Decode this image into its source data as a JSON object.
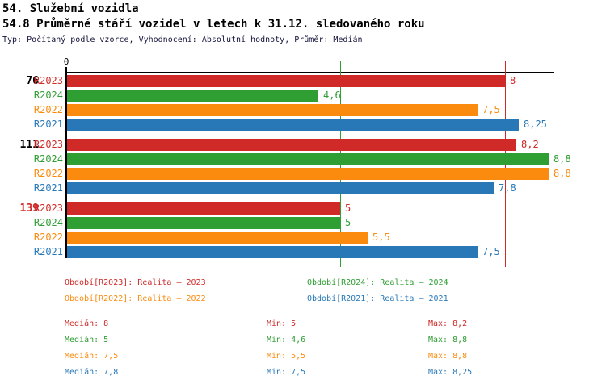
{
  "header": {
    "title": "54. Služební vozidla",
    "subtitle": "54.8 Průměrné stáří vozidel v letech k 31.12. sledovaného roku",
    "meta": "Typ: Počítaný podle vzorce, Vyhodnocení: Absolutní hodnoty, Průměr: Medián"
  },
  "palette": {
    "R2023": "#cf2a27",
    "R2024": "#2f9e33",
    "R2022": "#fb8b0e",
    "R2021": "#2878b8",
    "axis": "#000000",
    "group_label_default": "#000000",
    "group_label_highlight": "#cf2a27"
  },
  "chart_data": {
    "type": "bar",
    "orientation": "horizontal",
    "value_axis": {
      "origin_label": "0",
      "min": 0,
      "max": 8.88,
      "position": "top"
    },
    "series_order": [
      "R2023",
      "R2024",
      "R2022",
      "R2021"
    ],
    "groups": [
      {
        "label": "76",
        "highlight": false,
        "bars": [
          {
            "series": "R2023",
            "value": 8,
            "display": "8"
          },
          {
            "series": "R2024",
            "value": 4.6,
            "display": "4,6"
          },
          {
            "series": "R2022",
            "value": 7.5,
            "display": "7,5"
          },
          {
            "series": "R2021",
            "value": 8.25,
            "display": "8,25"
          }
        ]
      },
      {
        "label": "111",
        "highlight": false,
        "bars": [
          {
            "series": "R2023",
            "value": 8.2,
            "display": "8,2"
          },
          {
            "series": "R2024",
            "value": 8.8,
            "display": "8,8"
          },
          {
            "series": "R2022",
            "value": 8.8,
            "display": "8,8"
          },
          {
            "series": "R2021",
            "value": 7.8,
            "display": "7,8"
          }
        ]
      },
      {
        "label": "139",
        "highlight": true,
        "bars": [
          {
            "series": "R2023",
            "value": 5,
            "display": "5"
          },
          {
            "series": "R2024",
            "value": 5,
            "display": "5"
          },
          {
            "series": "R2022",
            "value": 5.5,
            "display": "5,5"
          },
          {
            "series": "R2021",
            "value": 7.5,
            "display": "7,5"
          }
        ]
      }
    ],
    "median_lines": [
      {
        "series": "R2023",
        "value": 8
      },
      {
        "series": "R2024",
        "value": 5
      },
      {
        "series": "R2022",
        "value": 7.5
      },
      {
        "series": "R2021",
        "value": 7.8
      }
    ]
  },
  "legend": [
    {
      "series": "R2023",
      "label": "Období[R2023]: Realita – 2023"
    },
    {
      "series": "R2024",
      "label": "Období[R2024]: Realita – 2024"
    },
    {
      "series": "R2022",
      "label": "Období[R2022]: Realita – 2022"
    },
    {
      "series": "R2021",
      "label": "Období[R2021]: Realita – 2021"
    }
  ],
  "stats": [
    {
      "series": "R2023",
      "median": "Medián: 8",
      "min": "Min: 5",
      "max": "Max: 8,2"
    },
    {
      "series": "R2024",
      "median": "Medián: 5",
      "min": "Min: 4,6",
      "max": "Max: 8,8"
    },
    {
      "series": "R2022",
      "median": "Medián: 7,5",
      "min": "Min: 5,5",
      "max": "Max: 8,8"
    },
    {
      "series": "R2021",
      "median": "Medián: 7,8",
      "min": "Min: 7,5",
      "max": "Max: 8,25"
    }
  ]
}
